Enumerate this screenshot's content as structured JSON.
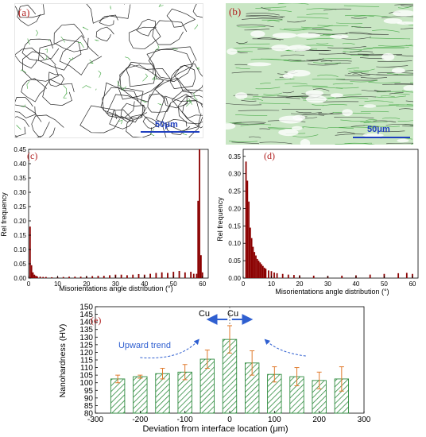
{
  "panels": {
    "a": {
      "label": "(a)",
      "scale_bar": "50μm"
    },
    "b": {
      "label": "(b)",
      "scale_bar": "50μm"
    },
    "c": {
      "label": "(c)"
    },
    "d": {
      "label": "(d)"
    },
    "e": {
      "label": "(e)"
    }
  },
  "colors": {
    "histogram_bar": "#8b0000",
    "hatched_bar": "#2e8b3e",
    "error_bar": "#e07a2c",
    "annotation_arrow": "#2f5fd0",
    "label": "#b22222",
    "scale_bar": "#1f3fbf",
    "grain_boundary_black": "#222222",
    "grain_boundary_green": "#3aa23a"
  },
  "chart_data": [
    {
      "id": "c",
      "type": "bar",
      "xlabel": "Misorientations angle distribution (°)",
      "ylabel": "Rel frequency",
      "xlim": [
        0,
        62
      ],
      "ylim": [
        0,
        0.45
      ],
      "xticks": [
        "0",
        "10",
        "20",
        "30",
        "40",
        "50",
        "60"
      ],
      "yticks": [
        "0.00",
        "0.05",
        "0.10",
        "0.15",
        "0.20",
        "0.25",
        "0.30",
        "0.35",
        "0.40",
        "0.45"
      ],
      "bin_width": 0.5,
      "x": [
        0.5,
        1,
        1.5,
        2,
        2.5,
        3,
        4,
        5,
        6,
        8,
        10,
        12,
        14,
        16,
        18,
        20,
        22,
        24,
        26,
        28,
        30,
        32,
        34,
        36,
        38,
        40,
        42,
        44,
        46,
        48,
        50,
        52,
        54,
        56,
        57,
        58,
        58.5,
        59,
        59.5,
        60
      ],
      "values": [
        0.18,
        0.045,
        0.02,
        0.012,
        0.008,
        0.006,
        0.005,
        0.004,
        0.004,
        0.003,
        0.004,
        0.004,
        0.005,
        0.005,
        0.005,
        0.006,
        0.007,
        0.008,
        0.008,
        0.01,
        0.012,
        0.012,
        0.01,
        0.012,
        0.014,
        0.012,
        0.015,
        0.018,
        0.02,
        0.018,
        0.022,
        0.025,
        0.02,
        0.022,
        0.015,
        0.015,
        0.27,
        0.45,
        0.08,
        0.02
      ]
    },
    {
      "id": "d",
      "type": "bar",
      "xlabel": "Misorientations angle distribution (°)",
      "ylabel": "Rel frequency",
      "xlim": [
        0,
        62
      ],
      "ylim": [
        0,
        0.37
      ],
      "xticks": [
        "0",
        "10",
        "20",
        "30",
        "40",
        "50",
        "60"
      ],
      "yticks": [
        "0.00",
        "0.05",
        "0.10",
        "0.15",
        "0.20",
        "0.25",
        "0.30",
        "0.35"
      ],
      "bin_width": 0.5,
      "x": [
        1,
        1.5,
        2,
        2.5,
        3,
        3.5,
        4,
        4.5,
        5,
        5.5,
        6,
        6.5,
        7,
        7.5,
        8,
        9,
        10,
        11,
        12,
        14,
        16,
        18,
        20,
        25,
        30,
        35,
        40,
        45,
        50,
        55,
        58,
        60
      ],
      "values": [
        0.335,
        0.28,
        0.22,
        0.145,
        0.115,
        0.09,
        0.075,
        0.065,
        0.055,
        0.05,
        0.045,
        0.04,
        0.035,
        0.03,
        0.027,
        0.022,
        0.02,
        0.016,
        0.014,
        0.012,
        0.01,
        0.009,
        0.008,
        0.007,
        0.006,
        0.007,
        0.008,
        0.01,
        0.012,
        0.014,
        0.015,
        0.012
      ]
    },
    {
      "id": "e",
      "type": "bar",
      "xlabel": "Deviation from interface location (μm)",
      "ylabel": "Nanohardness (HV)",
      "xlim": [
        -300,
        300
      ],
      "ylim": [
        80,
        150
      ],
      "xticks": [
        "-300",
        "-200",
        "-100",
        "0",
        "100",
        "200",
        "300"
      ],
      "yticks": [
        "80",
        "85",
        "90",
        "95",
        "100",
        "105",
        "110",
        "115",
        "120",
        "125",
        "130",
        "135",
        "140",
        "145",
        "150"
      ],
      "x": [
        -250,
        -200,
        -150,
        -100,
        -50,
        0,
        50,
        100,
        150,
        200,
        250
      ],
      "values": [
        102.5,
        104,
        106,
        107,
        115.5,
        128.5,
        113,
        105.5,
        104,
        101.5,
        102.5
      ],
      "errors": [
        2.5,
        1,
        3.5,
        5,
        6,
        9,
        8,
        5,
        6,
        5.5,
        8
      ],
      "annotations": {
        "trend": "Upward trend",
        "left_material": "Cu",
        "right_material": "Cu"
      }
    }
  ]
}
